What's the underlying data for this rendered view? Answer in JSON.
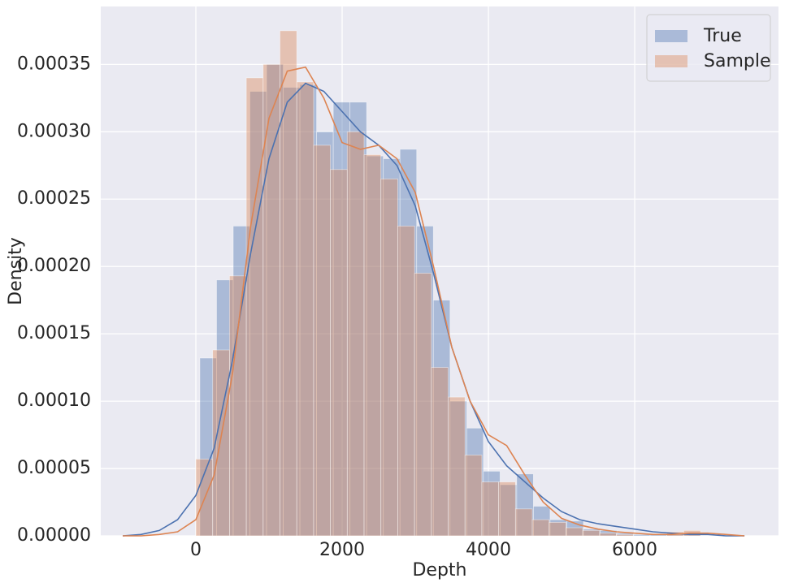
{
  "chart_data": {
    "type": "histogram",
    "x_label": "Depth",
    "y_label": "Density",
    "xlim": [
      -1300,
      7966
    ],
    "ylim": [
      0,
      0.000393
    ],
    "xticks": [
      0,
      2000,
      4000,
      6000
    ],
    "yticks": [
      {
        "value": 0,
        "label": "0.00000"
      },
      {
        "value": 5e-05,
        "label": "0.00005"
      },
      {
        "value": 0.0001,
        "label": "0.00010"
      },
      {
        "value": 0.00015,
        "label": "0.00015"
      },
      {
        "value": 0.0002,
        "label": "0.00020"
      },
      {
        "value": 0.00025,
        "label": "0.00025"
      },
      {
        "value": 0.0003,
        "label": "0.00030"
      },
      {
        "value": 0.00035,
        "label": "0.00035"
      }
    ],
    "grid": true,
    "legend": "upper right",
    "series": [
      {
        "name": "True",
        "color": "#4c72b0",
        "bins": [
          55,
          283,
          511,
          739,
          967,
          1195,
          1423,
          1651,
          1879,
          2107,
          2335,
          2563,
          2791,
          3019,
          3247,
          3475,
          3703,
          3931,
          4159,
          4387,
          4615,
          4843,
          5071,
          5299,
          5527,
          5755,
          5983,
          6211,
          6439,
          6667,
          6895
        ],
        "values": [
          0.000132,
          0.00019,
          0.00023,
          0.00033,
          0.00035,
          0.000333,
          0.000335,
          0.0003,
          0.000322,
          0.000322,
          0.000282,
          0.00028,
          0.000287,
          0.00023,
          0.000175,
          0.0001,
          8e-05,
          4.8e-05,
          3.8e-05,
          4.6e-05,
          2.2e-05,
          1.2e-05,
          1.1e-05,
          5e-06,
          4e-06,
          2e-06,
          1e-06,
          1e-06,
          1e-06,
          2e-06
        ],
        "kde": {
          "x": [
            -1000,
            -750,
            -500,
            -250,
            0,
            250,
            500,
            750,
            1000,
            1250,
            1500,
            1750,
            2000,
            2250,
            2500,
            2750,
            3000,
            3250,
            3500,
            3750,
            4000,
            4250,
            4500,
            4750,
            5000,
            5250,
            5500,
            5750,
            6000,
            6250,
            6500,
            6750,
            7000,
            7250,
            7500
          ],
          "values": [
            0,
            1e-06,
            4e-06,
            1.2e-05,
            3e-05,
            6.5e-05,
            0.00013,
            0.00021,
            0.00028,
            0.000322,
            0.000336,
            0.00033,
            0.000315,
            0.0003,
            0.00029,
            0.000275,
            0.000245,
            0.000195,
            0.00014,
            0.0001,
            7e-05,
            5.2e-05,
            4e-05,
            2.8e-05,
            1.8e-05,
            1.2e-05,
            9e-06,
            7e-06,
            5e-06,
            3e-06,
            2e-06,
            1e-06,
            1e-06,
            0,
            0
          ]
        }
      },
      {
        "name": "Sample",
        "color": "#dd8452",
        "bins": [
          0,
          230,
          460,
          690,
          920,
          1150,
          1380,
          1610,
          1840,
          2070,
          2300,
          2530,
          2760,
          2990,
          3220,
          3450,
          3680,
          3910,
          4140,
          4370,
          4600,
          4830,
          5060,
          5290,
          5520,
          5750,
          5980,
          6210,
          6440,
          6670,
          6900
        ],
        "values": [
          5.7e-05,
          0.000138,
          0.000193,
          0.00034,
          0.00035,
          0.000375,
          0.000337,
          0.00029,
          0.000272,
          0.0003,
          0.000283,
          0.000265,
          0.00023,
          0.000195,
          0.000125,
          0.000103,
          6e-05,
          4e-05,
          4e-05,
          2e-05,
          1.2e-05,
          1e-05,
          6e-06,
          4e-06,
          2e-06,
          1e-06,
          0,
          0,
          3e-06,
          4e-06
        ],
        "kde": {
          "x": [
            -1000,
            -750,
            -500,
            -250,
            0,
            250,
            500,
            750,
            1000,
            1250,
            1500,
            1750,
            2000,
            2250,
            2500,
            2750,
            3000,
            3250,
            3500,
            3750,
            4000,
            4250,
            4500,
            4750,
            5000,
            5250,
            5500,
            5750,
            6000,
            6250,
            6500,
            6750,
            7000,
            7250,
            7500
          ],
          "values": [
            0,
            0,
            1e-06,
            3e-06,
            1.2e-05,
            4.5e-05,
            0.00012,
            0.00023,
            0.00031,
            0.000345,
            0.000348,
            0.000325,
            0.000292,
            0.000287,
            0.00029,
            0.00028,
            0.000255,
            0.0002,
            0.00014,
            0.0001,
            7.5e-05,
            6.7e-05,
            4.5e-05,
            2.5e-05,
            1.3e-05,
            8e-06,
            5e-06,
            3e-06,
            2e-06,
            1e-06,
            1e-06,
            2e-06,
            2e-06,
            1e-06,
            0
          ]
        }
      }
    ]
  }
}
